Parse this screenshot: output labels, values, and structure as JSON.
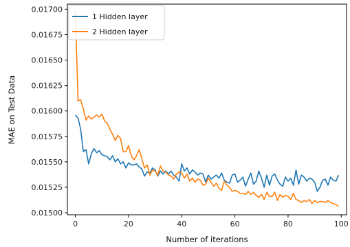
{
  "chart_data": {
    "type": "line",
    "title": "",
    "xlabel": "Number of iterations",
    "ylabel": "MAE on Test Data",
    "xlim": [
      -3,
      102
    ],
    "ylim": [
      0.01498,
      0.01705
    ],
    "xticks": [
      0,
      20,
      40,
      60,
      80,
      100
    ],
    "xtick_labels": [
      "0",
      "20",
      "40",
      "60",
      "80",
      "100"
    ],
    "yticks": [
      0.015,
      0.01525,
      0.0155,
      0.01575,
      0.016,
      0.01625,
      0.0165,
      0.01675,
      0.017
    ],
    "ytick_labels": [
      "0.01500",
      "0.01525",
      "0.01550",
      "0.01575",
      "0.01600",
      "0.01625",
      "0.01650",
      "0.01675",
      "0.01700"
    ],
    "grid": false,
    "legend_position": "top-left",
    "series": [
      {
        "name": "1 Hidden layer",
        "color": "#1f77b4",
        "x": [
          0,
          1,
          2,
          3,
          4,
          5,
          6,
          7,
          8,
          9,
          10,
          11,
          12,
          13,
          14,
          15,
          16,
          17,
          18,
          19,
          20,
          21,
          22,
          23,
          24,
          25,
          26,
          27,
          28,
          29,
          30,
          31,
          32,
          33,
          34,
          35,
          36,
          37,
          38,
          39,
          40,
          41,
          42,
          43,
          44,
          45,
          46,
          47,
          48,
          49,
          50,
          51,
          52,
          53,
          54,
          55,
          56,
          57,
          58,
          59,
          60,
          61,
          62,
          63,
          64,
          65,
          66,
          67,
          68,
          69,
          70,
          71,
          72,
          73,
          74,
          75,
          76,
          77,
          78,
          79,
          80,
          81,
          82,
          83,
          84,
          85,
          86,
          87,
          88,
          89,
          90,
          91,
          92,
          93,
          94,
          95,
          96,
          97,
          98,
          99
        ],
        "y": [
          0.01596,
          0.01593,
          0.01582,
          0.0156,
          0.01562,
          0.01548,
          0.01558,
          0.01563,
          0.01559,
          0.01561,
          0.01557,
          0.01556,
          0.01555,
          0.01552,
          0.01556,
          0.0155,
          0.01553,
          0.01548,
          0.0155,
          0.01544,
          0.01549,
          0.01547,
          0.01547,
          0.01548,
          0.01545,
          0.01543,
          0.01536,
          0.0154,
          0.01539,
          0.01544,
          0.01542,
          0.01536,
          0.01541,
          0.01538,
          0.01541,
          0.01538,
          0.01541,
          0.01537,
          0.01535,
          0.01531,
          0.01548,
          0.01541,
          0.01544,
          0.01538,
          0.01542,
          0.0154,
          0.01537,
          0.01539,
          0.01538,
          0.0153,
          0.01537,
          0.01533,
          0.01535,
          0.01537,
          0.01534,
          0.01539,
          0.01532,
          0.0153,
          0.01529,
          0.01537,
          0.01538,
          0.0153,
          0.01532,
          0.01535,
          0.01526,
          0.01533,
          0.01539,
          0.01528,
          0.01531,
          0.01541,
          0.01534,
          0.01525,
          0.01537,
          0.01527,
          0.01536,
          0.01538,
          0.01532,
          0.01528,
          0.01526,
          0.01535,
          0.01531,
          0.01534,
          0.01527,
          0.01542,
          0.01528,
          0.01537,
          0.01535,
          0.01531,
          0.01534,
          0.01533,
          0.0153,
          0.01521,
          0.01525,
          0.01532,
          0.01533,
          0.01527,
          0.01535,
          0.01532,
          0.01531,
          0.01537
        ]
      },
      {
        "name": "2 Hidden layer",
        "color": "#ff7f0e",
        "x": [
          0,
          1,
          2,
          3,
          4,
          5,
          6,
          7,
          8,
          9,
          10,
          11,
          12,
          13,
          14,
          15,
          16,
          17,
          18,
          19,
          20,
          21,
          22,
          23,
          24,
          25,
          26,
          27,
          28,
          29,
          30,
          31,
          32,
          33,
          34,
          35,
          36,
          37,
          38,
          39,
          40,
          41,
          42,
          43,
          44,
          45,
          46,
          47,
          48,
          49,
          50,
          51,
          52,
          53,
          54,
          55,
          56,
          57,
          58,
          59,
          60,
          61,
          62,
          63,
          64,
          65,
          66,
          67,
          68,
          69,
          70,
          71,
          72,
          73,
          74,
          75,
          76,
          77,
          78,
          79,
          80,
          81,
          82,
          83,
          84,
          85,
          86,
          87,
          88,
          89,
          90,
          91,
          92,
          93,
          94,
          95,
          96,
          97,
          98,
          99
        ],
        "y": [
          0.01699,
          0.0161,
          0.01611,
          0.01602,
          0.01591,
          0.01595,
          0.01592,
          0.01594,
          0.01596,
          0.01594,
          0.01597,
          0.0159,
          0.01588,
          0.01582,
          0.01577,
          0.01571,
          0.01576,
          0.01573,
          0.0156,
          0.0156,
          0.01566,
          0.01556,
          0.01552,
          0.01556,
          0.01562,
          0.01553,
          0.01544,
          0.01547,
          0.01537,
          0.01542,
          0.01541,
          0.01537,
          0.01546,
          0.01541,
          0.0154,
          0.01537,
          0.01536,
          0.01533,
          0.01538,
          0.0154,
          0.01539,
          0.01534,
          0.01538,
          0.01531,
          0.01534,
          0.0153,
          0.01533,
          0.01532,
          0.01527,
          0.01528,
          0.01534,
          0.0153,
          0.01526,
          0.01529,
          0.01524,
          0.01522,
          0.01531,
          0.01527,
          0.01525,
          0.01521,
          0.01522,
          0.01521,
          0.01519,
          0.01519,
          0.01518,
          0.01521,
          0.01518,
          0.0152,
          0.01517,
          0.01515,
          0.01518,
          0.01513,
          0.0152,
          0.01516,
          0.01516,
          0.0152,
          0.01512,
          0.01518,
          0.01515,
          0.01517,
          0.01516,
          0.01513,
          0.01519,
          0.01513,
          0.01512,
          0.0151,
          0.01512,
          0.01511,
          0.01513,
          0.01509,
          0.01512,
          0.0151,
          0.01511,
          0.01511,
          0.0151,
          0.01512,
          0.0151,
          0.01509,
          0.01508,
          0.01506
        ]
      }
    ]
  }
}
